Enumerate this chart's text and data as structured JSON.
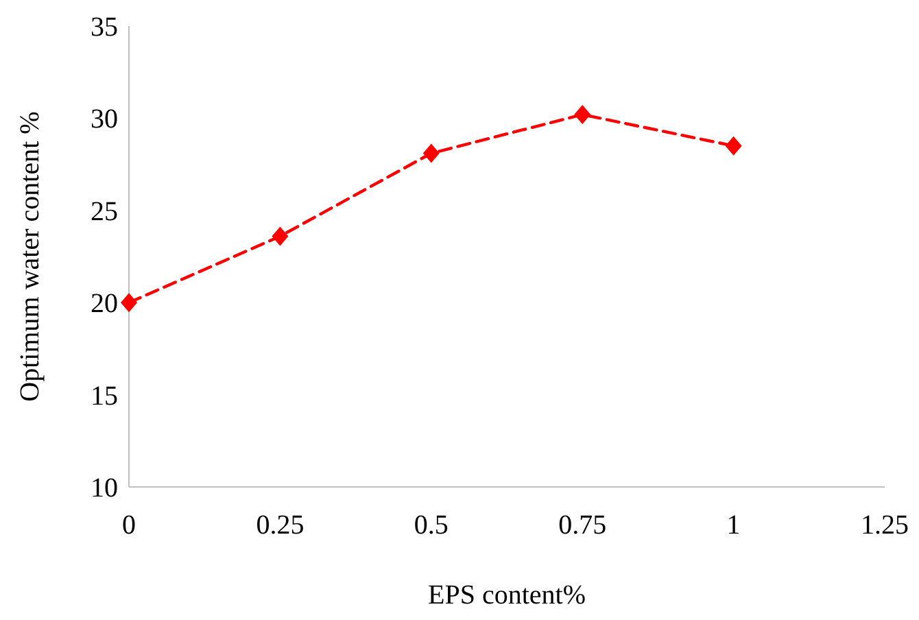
{
  "chart_data": {
    "type": "line",
    "xlabel": "EPS content%",
    "ylabel": "Optimum water content %",
    "x": [
      0,
      0.25,
      0.5,
      0.75,
      1
    ],
    "series": [
      {
        "color": "#ff0000",
        "values": [
          20,
          23.6,
          28.1,
          30.2,
          28.5
        ]
      }
    ],
    "xlim": [
      0,
      1.25
    ],
    "xticks": [
      0,
      0.25,
      0.5,
      0.75,
      1,
      1.25
    ],
    "ylim": [
      10,
      35
    ],
    "yticks": [
      10,
      15,
      20,
      25,
      30,
      35
    ],
    "grid": false,
    "marker": "diamond",
    "line_style": "dashed"
  }
}
